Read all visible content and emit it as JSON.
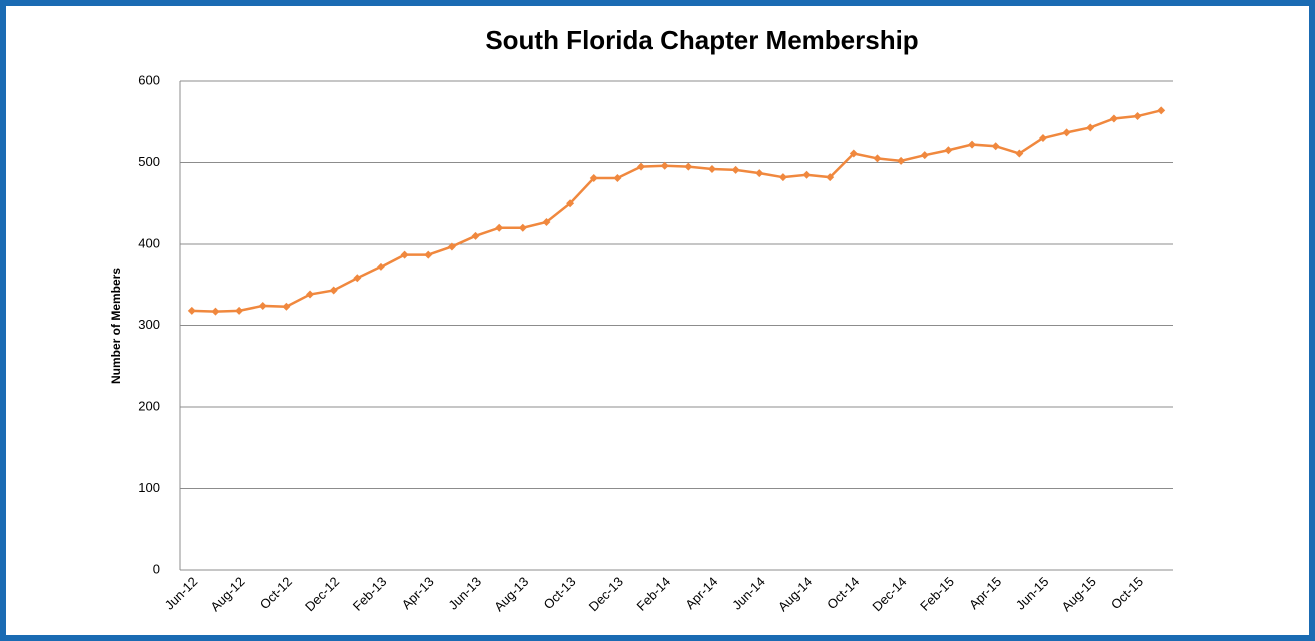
{
  "chart_data": {
    "type": "line",
    "title": "South Florida Chapter Membership",
    "y_label": "Number of Members",
    "categories": [
      "Jun-12",
      null,
      "Aug-12",
      null,
      "Oct-12",
      null,
      "Dec-12",
      null,
      "Feb-13",
      null,
      "Apr-13",
      null,
      "Jun-13",
      null,
      "Aug-13",
      null,
      "Oct-13",
      null,
      "Dec-13",
      null,
      "Feb-14",
      null,
      "Apr-14",
      null,
      "Jun-14",
      null,
      "Aug-14",
      null,
      "Oct-14",
      null,
      "Dec-14",
      null,
      "Feb-15",
      null,
      "Apr-15",
      null,
      "Jun-15",
      null,
      "Aug-15",
      null,
      "Oct-15",
      null
    ],
    "values": [
      318,
      317,
      318,
      324,
      323,
      338,
      343,
      358,
      372,
      387,
      387,
      397,
      410,
      420,
      420,
      427,
      450,
      481,
      481,
      495,
      496,
      495,
      492,
      491,
      487,
      482,
      485,
      482,
      511,
      505,
      502,
      509,
      515,
      522,
      520,
      511,
      530,
      537,
      543,
      554,
      557,
      564
    ],
    "color": "#f0883e",
    "ylim": [
      0,
      600
    ],
    "yticks": [
      0,
      100,
      200,
      300,
      400,
      500,
      600
    ],
    "grid": true
  }
}
